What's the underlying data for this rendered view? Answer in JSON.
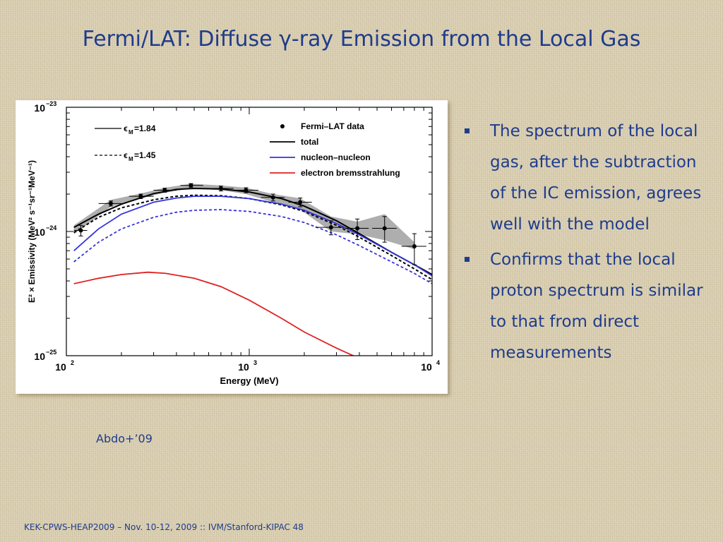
{
  "slide": {
    "title": "Fermi/LAT: Diffuse γ-ray Emission from the Local Gas",
    "citation": "Abdo+’09",
    "bullets": [
      "The spectrum of the local gas, after the subtraction of the IC emission, agrees well with the model",
      "Confirms that the local proton spectrum is similar to that from direct measurements"
    ],
    "footer": "KEK-CPWS-HEAP2009 – Nov. 10-12, 2009 :: IVM/Stanford-KIPAC  48"
  },
  "colors": {
    "title_text": "#1f3c8c",
    "total": "#000000",
    "nucleon_nucleon": "#3333dd",
    "electron_bremsstrahlung": "#dd2222",
    "band_fill": "#9a9a9a"
  },
  "chart_data": {
    "type": "line",
    "xlabel": "Energy (MeV)",
    "ylabel": "E² × Emissivity (MeV² s⁻¹sr⁻¹MeV⁻¹)",
    "x_scale": "log",
    "y_scale": "log",
    "xlim": [
      100,
      10000
    ],
    "ylim": [
      1e-25,
      1e-23
    ],
    "x_ticks": [
      {
        "value": 100,
        "base": "10",
        "exp": "2"
      },
      {
        "value": 1000,
        "base": "10",
        "exp": "3"
      },
      {
        "value": 10000,
        "base": "10",
        "exp": "4"
      }
    ],
    "y_ticks": [
      {
        "value": 1e-25,
        "base": "10",
        "exp": "−25"
      },
      {
        "value": 1e-24,
        "base": "10",
        "exp": "−24"
      },
      {
        "value": 1e-23,
        "base": "10",
        "exp": "−23"
      }
    ],
    "legend_left": [
      {
        "label_prefix": "ϵ",
        "label_sub": "M",
        "label_suffix": "=1.84",
        "style": "solid"
      },
      {
        "label_prefix": "ϵ",
        "label_sub": "M",
        "label_suffix": "=1.45",
        "style": "dashed"
      }
    ],
    "legend_right": [
      {
        "label": "Fermi–LAT data",
        "style": "marker"
      },
      {
        "label": "total",
        "style": "line",
        "color_key": "total"
      },
      {
        "label": "nucleon–nucleon",
        "style": "line",
        "color_key": "nucleon_nucleon"
      },
      {
        "label": "electron bremsstrahlung",
        "style": "line",
        "color_key": "electron_bremsstrahlung"
      }
    ],
    "data_points": [
      {
        "x": 120,
        "y": 1.02e-24,
        "y_lo": 9.2e-25,
        "y_hi": 1.12e-24,
        "x_lo": 110,
        "x_hi": 130
      },
      {
        "x": 175,
        "y": 1.68e-24,
        "y_lo": 1.6e-24,
        "y_hi": 1.76e-24,
        "x_lo": 150,
        "x_hi": 200
      },
      {
        "x": 255,
        "y": 1.92e-24,
        "y_lo": 1.84e-24,
        "y_hi": 2e-24,
        "x_lo": 220,
        "x_hi": 300
      },
      {
        "x": 345,
        "y": 2.15e-24,
        "y_lo": 2.07e-24,
        "y_hi": 2.23e-24,
        "x_lo": 300,
        "x_hi": 400
      },
      {
        "x": 480,
        "y": 2.35e-24,
        "y_lo": 2.27e-24,
        "y_hi": 2.43e-24,
        "x_lo": 420,
        "x_hi": 560
      },
      {
        "x": 700,
        "y": 2.22e-24,
        "y_lo": 2.12e-24,
        "y_hi": 2.32e-24,
        "x_lo": 600,
        "x_hi": 820
      },
      {
        "x": 960,
        "y": 2.15e-24,
        "y_lo": 2.05e-24,
        "y_hi": 2.25e-24,
        "x_lo": 830,
        "x_hi": 1120
      },
      {
        "x": 1350,
        "y": 1.88e-24,
        "y_lo": 1.76e-24,
        "y_hi": 2e-24,
        "x_lo": 1160,
        "x_hi": 1560
      },
      {
        "x": 1900,
        "y": 1.72e-24,
        "y_lo": 1.58e-24,
        "y_hi": 1.86e-24,
        "x_lo": 1640,
        "x_hi": 2200
      },
      {
        "x": 2800,
        "y": 1.08e-24,
        "y_lo": 9.4e-25,
        "y_hi": 1.22e-24,
        "x_lo": 2300,
        "x_hi": 3300
      },
      {
        "x": 3900,
        "y": 1.06e-24,
        "y_lo": 8.6e-25,
        "y_hi": 1.26e-24,
        "x_lo": 3350,
        "x_hi": 4500
      },
      {
        "x": 5500,
        "y": 1.06e-24,
        "y_lo": 8.2e-25,
        "y_hi": 1.32e-24,
        "x_lo": 4700,
        "x_hi": 6400
      },
      {
        "x": 8000,
        "y": 7.6e-25,
        "y_lo": 5.4e-25,
        "y_hi": 9.6e-25,
        "x_lo": 6800,
        "x_hi": 9300
      }
    ],
    "band": {
      "x": [
        110,
        175,
        255,
        345,
        480,
        700,
        960,
        1350,
        1900,
        2800,
        3900,
        5500,
        8000
      ],
      "lower": [
        9.5e-25,
        1.58e-24,
        1.85e-24,
        2.05e-24,
        2.22e-24,
        2.15e-24,
        2e-24,
        1.72e-24,
        1.5e-24,
        1e-24,
        9.5e-25,
        8.5e-25,
        7.2e-25
      ],
      "upper": [
        1.12e-24,
        1.8e-24,
        2.02e-24,
        2.25e-24,
        2.42e-24,
        2.35e-24,
        2.25e-24,
        2e-24,
        1.85e-24,
        1.32e-24,
        1.2e-24,
        1.38e-24,
        8.2e-25
      ]
    },
    "series": [
      {
        "legend": "total",
        "style": "solid",
        "color_key": "total",
        "x": [
          110,
          150,
          200,
          300,
          400,
          500,
          700,
          1000,
          1500,
          2000,
          3000,
          4000,
          6000,
          8000,
          10000
        ],
        "y": [
          1.08e-24,
          1.38e-24,
          1.66e-24,
          2.02e-24,
          2.18e-24,
          2.22e-24,
          2.2e-24,
          2.08e-24,
          1.84e-24,
          1.6e-24,
          1.22e-24,
          9.6e-25,
          6.8e-25,
          5.4e-25,
          4.5e-25
        ]
      },
      {
        "legend": "total",
        "style": "dashed",
        "color_key": "total",
        "x": [
          110,
          150,
          200,
          300,
          400,
          500,
          700,
          1000,
          1500,
          2000,
          3000,
          4000,
          6000,
          8000,
          10000
        ],
        "y": [
          9.8e-25,
          1.3e-24,
          1.55e-24,
          1.8e-24,
          1.92e-24,
          1.96e-24,
          1.94e-24,
          1.84e-24,
          1.64e-24,
          1.45e-24,
          1.12e-24,
          9e-25,
          6.4e-25,
          5e-25,
          4.1e-25
        ]
      },
      {
        "legend": "nucleon–nucleon",
        "style": "solid",
        "color_key": "nucleon_nucleon",
        "x": [
          110,
          150,
          200,
          300,
          400,
          500,
          700,
          1000,
          1500,
          2000,
          3000,
          4000,
          6000,
          8000,
          10000
        ],
        "y": [
          7e-25,
          1.05e-24,
          1.38e-24,
          1.72e-24,
          1.86e-24,
          1.92e-24,
          1.92e-24,
          1.84e-24,
          1.66e-24,
          1.48e-24,
          1.16e-24,
          9.4e-25,
          6.8e-25,
          5.4e-25,
          4.4e-25
        ]
      },
      {
        "legend": "nucleon–nucleon",
        "style": "dashed",
        "color_key": "nucleon_nucleon",
        "x": [
          110,
          150,
          200,
          300,
          400,
          500,
          700,
          1000,
          1500,
          2000,
          3000,
          4000,
          6000,
          8000,
          10000
        ],
        "y": [
          5.7e-25,
          8.2e-25,
          1.05e-24,
          1.3e-24,
          1.43e-24,
          1.48e-24,
          1.5e-24,
          1.45e-24,
          1.32e-24,
          1.18e-24,
          9.4e-25,
          7.7e-25,
          5.7e-25,
          4.6e-25,
          3.8e-25
        ]
      },
      {
        "legend": "electron bremsstrahlung",
        "style": "solid",
        "color_key": "electron_bremsstrahlung",
        "x": [
          110,
          150,
          200,
          280,
          350,
          500,
          700,
          1000,
          1500,
          2000,
          3000,
          4000
        ],
        "y": [
          3.8e-25,
          4.2e-25,
          4.5e-25,
          4.7e-25,
          4.6e-25,
          4.2e-25,
          3.6e-25,
          2.8e-25,
          2e-25,
          1.55e-25,
          1.15e-25,
          9.5e-26
        ]
      }
    ]
  }
}
